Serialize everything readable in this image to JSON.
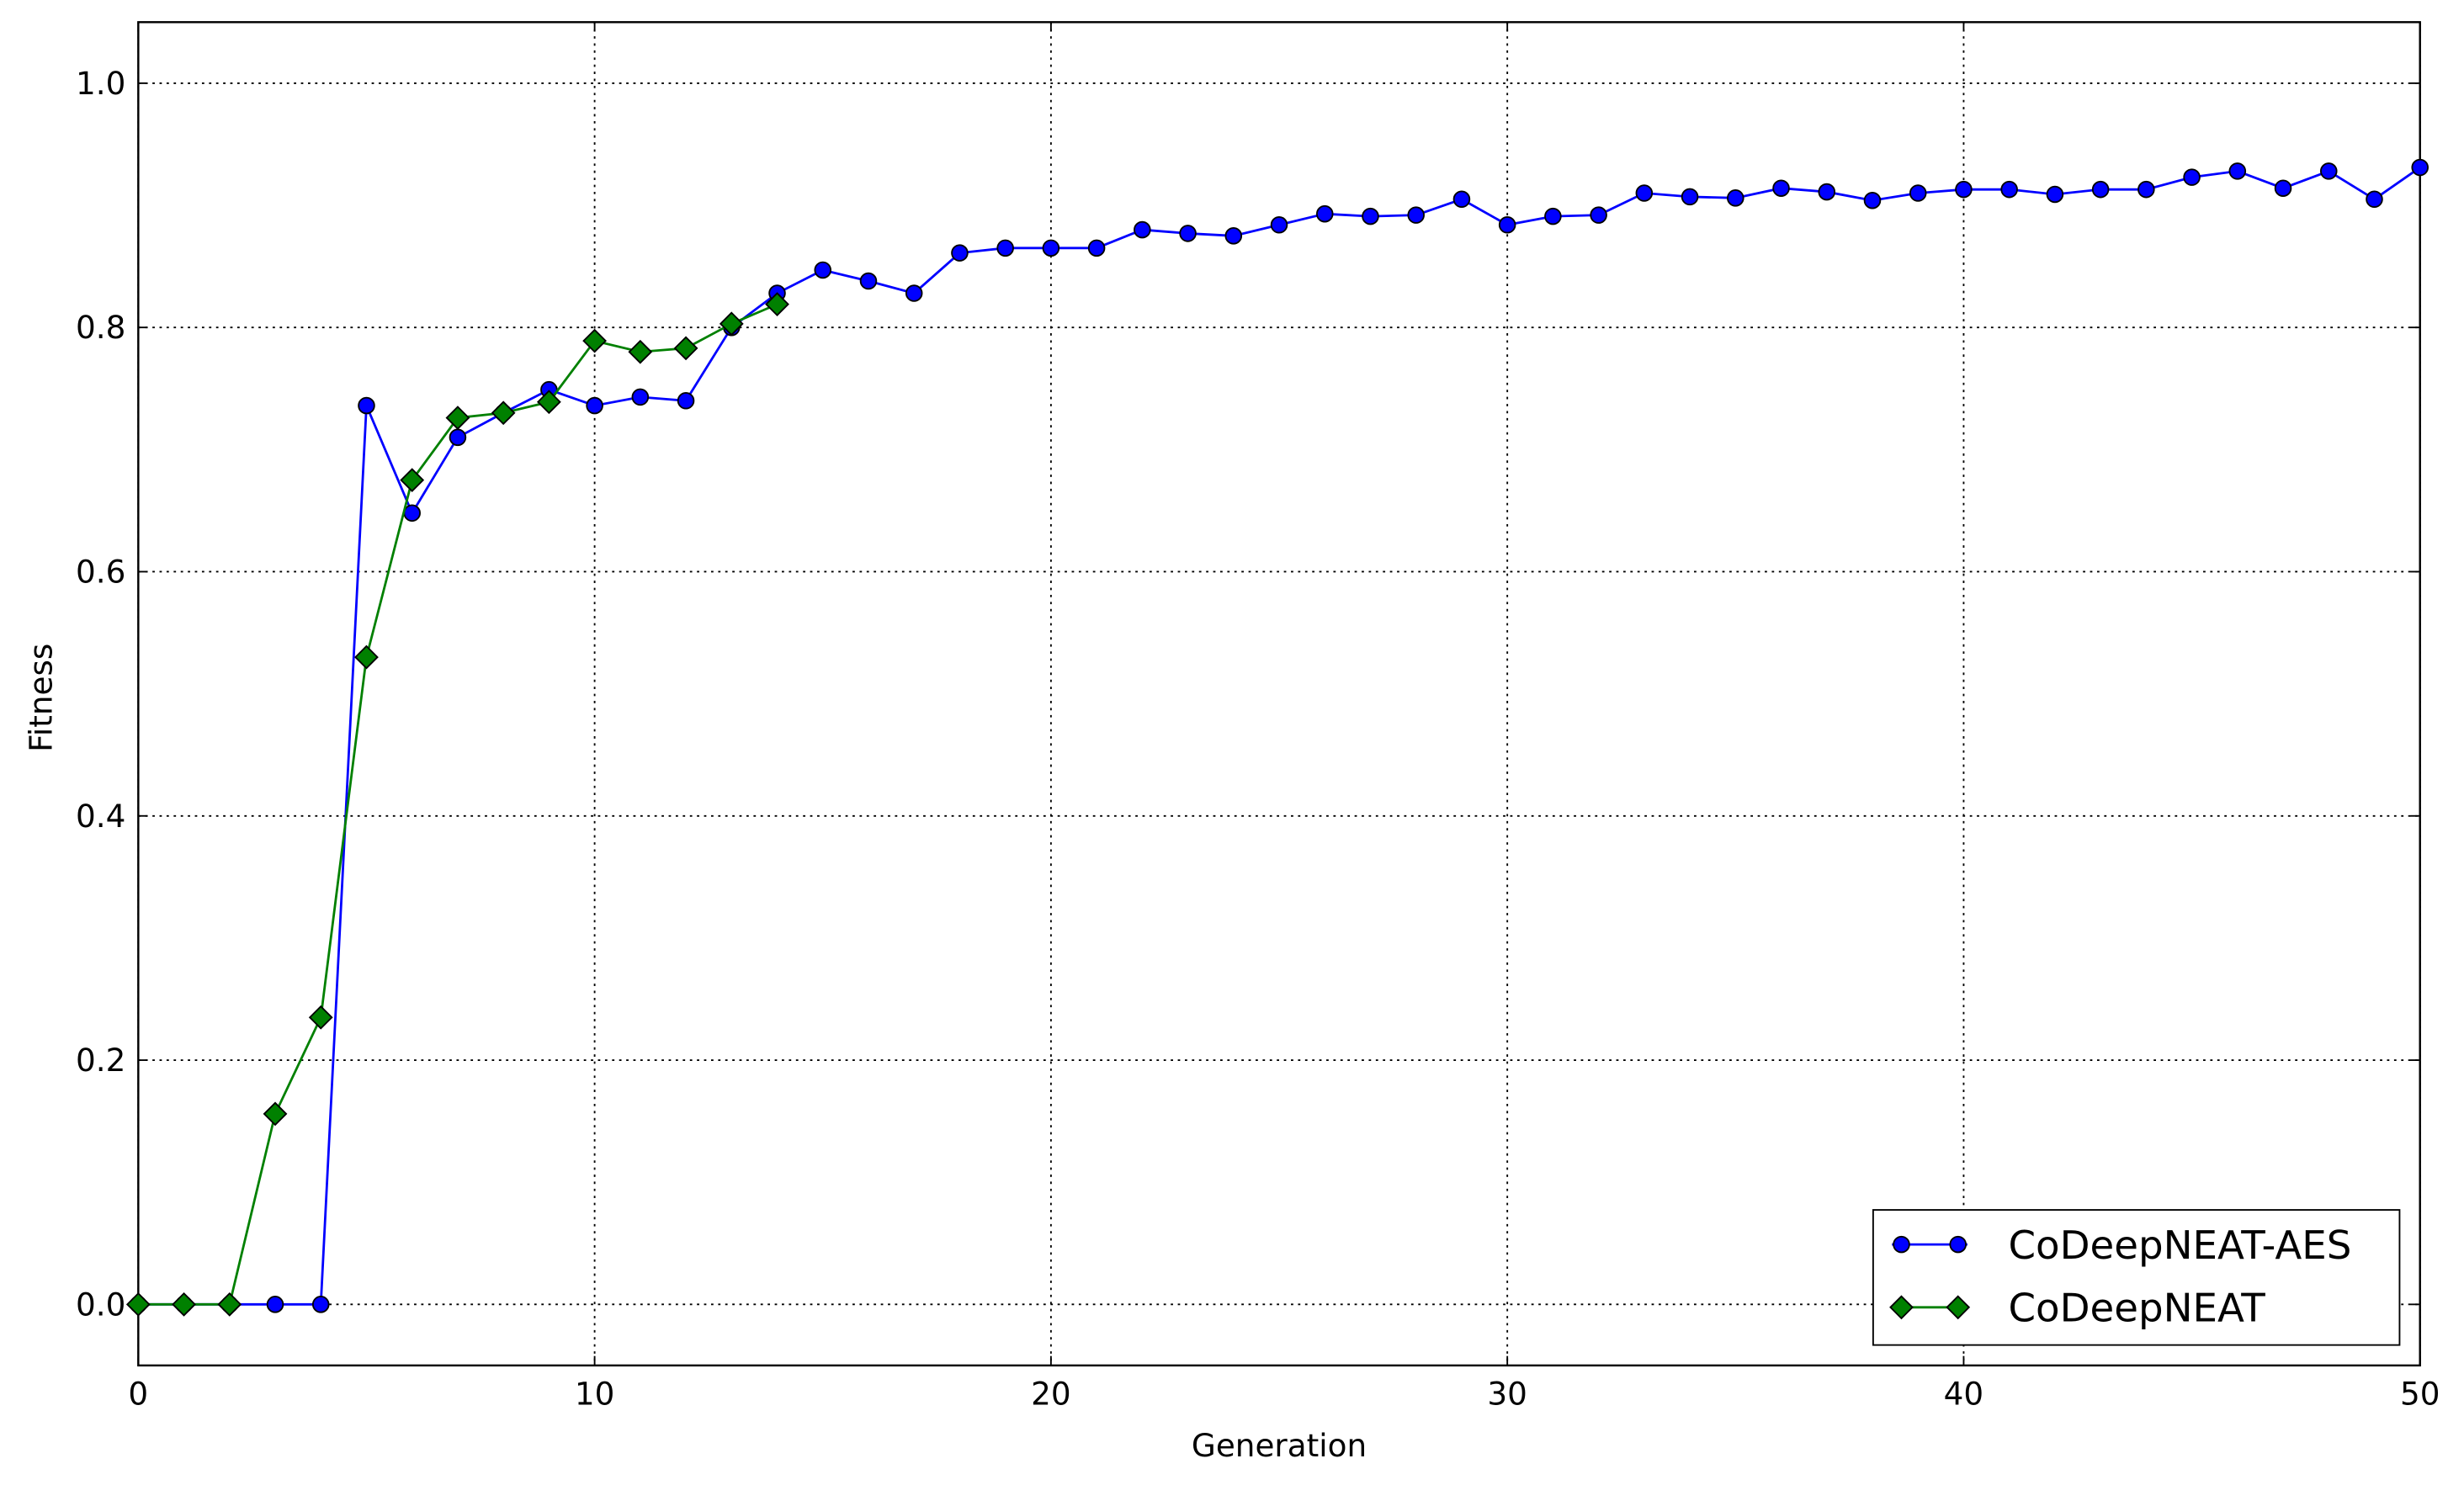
{
  "chart_data": {
    "type": "line",
    "x_label": "Generation",
    "y_label": "Fitness",
    "x": [
      0,
      1,
      2,
      3,
      4,
      5,
      6,
      7,
      8,
      9,
      10,
      11,
      12,
      13,
      14,
      15,
      16,
      17,
      18,
      19,
      20,
      21,
      22,
      23,
      24,
      25,
      26,
      27,
      28,
      29,
      30,
      31,
      32,
      33,
      34,
      35,
      36,
      37,
      38,
      39,
      40,
      41,
      42,
      43,
      44,
      45,
      46,
      47,
      48,
      49,
      50
    ],
    "series": [
      {
        "name": "CoDeepNEAT-AES",
        "color": "#0000ff",
        "marker": "circle",
        "values": [
          0,
          0,
          0,
          0,
          0,
          0.736,
          0.648,
          0.71,
          0.73,
          0.749,
          0.736,
          0.743,
          0.74,
          0.8,
          0.828,
          0.847,
          0.838,
          0.828,
          0.861,
          0.865,
          0.865,
          0.865,
          0.88,
          0.877,
          0.875,
          0.884,
          0.893,
          0.891,
          0.892,
          0.905,
          0.884,
          0.891,
          0.892,
          0.91,
          0.907,
          0.906,
          0.914,
          0.911,
          0.904,
          0.91,
          0.913,
          0.913,
          0.909,
          0.913,
          0.913,
          0.923,
          0.928,
          0.914,
          0.928,
          0.905,
          0.931
        ]
      },
      {
        "name": "CoDeepNEAT",
        "color": "#008000",
        "marker": "diamond",
        "values": [
          0,
          0,
          0,
          0.156,
          0.235,
          0.53,
          0.675,
          0.726,
          0.73,
          0.739,
          0.789,
          0.78,
          0.783,
          0.803,
          0.819,
          null,
          null,
          null,
          null,
          null,
          null,
          null,
          null,
          null,
          null,
          null,
          null,
          null,
          null,
          null,
          null,
          null,
          null,
          null,
          null,
          null,
          null,
          null,
          null,
          null,
          null,
          null,
          null,
          null,
          null,
          null,
          null,
          null,
          null,
          null,
          null
        ]
      }
    ],
    "xlim": [
      0,
      50
    ],
    "xticks": [
      0,
      10,
      20,
      30,
      40,
      50
    ],
    "ylim": [
      -0.05,
      1.05
    ],
    "yticks": [
      {
        "value": 0,
        "label": "0.0"
      },
      {
        "value": 0.2,
        "label": "0.2"
      },
      {
        "value": 0.4,
        "label": "0.4"
      },
      {
        "value": 0.6,
        "label": "0.6"
      },
      {
        "value": 0.8,
        "label": "0.8"
      },
      {
        "value": 1,
        "label": "1.0"
      }
    ],
    "grid": true,
    "legend": "lower right"
  }
}
